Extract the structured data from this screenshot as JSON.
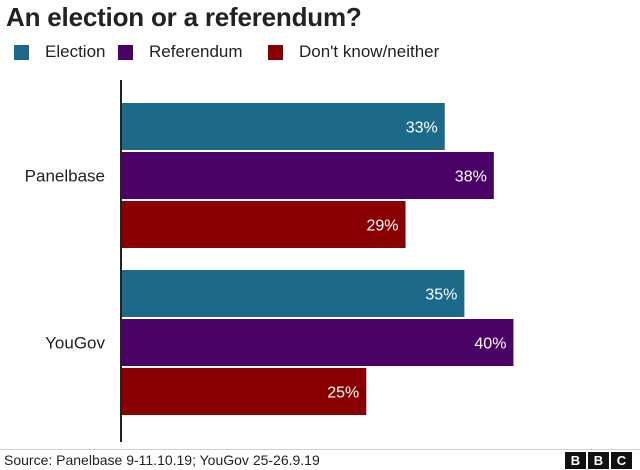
{
  "chart_data": {
    "type": "bar",
    "orientation": "horizontal",
    "title": "An election or a referendum?",
    "categories": [
      "Panelbase",
      "YouGov"
    ],
    "series": [
      {
        "name": "Election",
        "color": "#1b6a8a",
        "values": [
          33,
          35
        ],
        "labels": [
          "33%",
          "35%"
        ]
      },
      {
        "name": "Referendum",
        "color": "#4b0267",
        "values": [
          38,
          40
        ],
        "labels": [
          "38%",
          "40%"
        ]
      },
      {
        "name": "Don't know/neither",
        "color": "#8a0000",
        "values": [
          29,
          25
        ],
        "labels": [
          "29%",
          "25%"
        ]
      }
    ],
    "xlim": [
      0,
      53
    ],
    "grid": false,
    "legend_position": "top-left"
  },
  "source": "Source: Panelbase 9-11.10.19; YouGov 25-26.9.19",
  "logo": [
    "B",
    "B",
    "C"
  ]
}
